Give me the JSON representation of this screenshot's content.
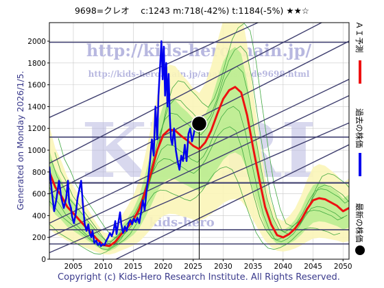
{
  "title": "9698=クレオ　 c:1243  m:718(-42%)  t:1184(-5%)  ★★☆",
  "footer": "Copyright (c) Kids-Hero Research Institute. All Rights Reserved.",
  "generated": "Generated on Monday 2026/1/5.",
  "watermark": {
    "url1": "http://kids-hero.main.jp/",
    "url2": "http://kids-hero.main.jp/analysis/code9698.html",
    "big": "KHRI",
    "bottom": "kids-hero"
  },
  "legend": {
    "ai": "ＡＩ予測",
    "past": "過去の株価",
    "latest": "最新の株価"
  },
  "colors": {
    "ai": "#ee1111",
    "past": "#0000ee",
    "latest": "#000000",
    "band_outer": "#fbf5b8",
    "band_inner": "#b6ec8e",
    "band_lines": "#3fa83f",
    "channel": "#404070",
    "grid": "#c8c8c8"
  },
  "chart_data": {
    "type": "line",
    "xlim": [
      2001.0,
      2051.0
    ],
    "ylim": [
      0,
      2170
    ],
    "x_ticks": [
      2005,
      2010,
      2015,
      2020,
      2025,
      2030,
      2035,
      2040,
      2045,
      2050
    ],
    "y_ticks": [
      0,
      200,
      400,
      600,
      800,
      1000,
      1200,
      1400,
      1600,
      1800,
      2000
    ],
    "current": {
      "x": 2026.0,
      "y": 1243
    },
    "horizontal_levels": [
      140,
      270,
      700,
      1120,
      1990
    ],
    "past_price": [
      [
        2001.0,
        850
      ],
      [
        2001.4,
        620
      ],
      [
        2001.8,
        440
      ],
      [
        2002.2,
        560
      ],
      [
        2002.6,
        720
      ],
      [
        2003.0,
        560
      ],
      [
        2003.4,
        470
      ],
      [
        2003.8,
        560
      ],
      [
        2004.1,
        720
      ],
      [
        2004.3,
        520
      ],
      [
        2004.6,
        470
      ],
      [
        2004.8,
        390
      ],
      [
        2005.1,
        330
      ],
      [
        2005.4,
        420
      ],
      [
        2005.7,
        560
      ],
      [
        2006.0,
        640
      ],
      [
        2006.3,
        720
      ],
      [
        2006.6,
        500
      ],
      [
        2006.9,
        320
      ],
      [
        2007.2,
        260
      ],
      [
        2007.5,
        320
      ],
      [
        2007.7,
        240
      ],
      [
        2008.0,
        200
      ],
      [
        2008.2,
        260
      ],
      [
        2008.5,
        150
      ],
      [
        2008.8,
        170
      ],
      [
        2009.1,
        130
      ],
      [
        2009.4,
        150
      ],
      [
        2009.6,
        120
      ],
      [
        2009.9,
        140
      ],
      [
        2010.2,
        130
      ],
      [
        2010.5,
        170
      ],
      [
        2010.8,
        200
      ],
      [
        2011.1,
        240
      ],
      [
        2011.4,
        210
      ],
      [
        2011.7,
        260
      ],
      [
        2012.0,
        350
      ],
      [
        2012.2,
        230
      ],
      [
        2012.5,
        330
      ],
      [
        2012.8,
        430
      ],
      [
        2013.0,
        320
      ],
      [
        2013.3,
        240
      ],
      [
        2013.6,
        300
      ],
      [
        2013.9,
        260
      ],
      [
        2014.2,
        330
      ],
      [
        2014.5,
        360
      ],
      [
        2014.8,
        320
      ],
      [
        2015.1,
        370
      ],
      [
        2015.4,
        340
      ],
      [
        2015.7,
        380
      ],
      [
        2016.0,
        330
      ],
      [
        2016.3,
        430
      ],
      [
        2016.6,
        540
      ],
      [
        2016.9,
        450
      ],
      [
        2017.2,
        620
      ],
      [
        2017.5,
        750
      ],
      [
        2017.8,
        900
      ],
      [
        2018.1,
        1100
      ],
      [
        2018.4,
        950
      ],
      [
        2018.7,
        1400
      ],
      [
        2019.0,
        1100
      ],
      [
        2019.2,
        1500
      ],
      [
        2019.5,
        1800
      ],
      [
        2019.7,
        2000
      ],
      [
        2019.9,
        1650
      ],
      [
        2020.1,
        1950
      ],
      [
        2020.3,
        1500
      ],
      [
        2020.5,
        1800
      ],
      [
        2020.7,
        1400
      ],
      [
        2020.9,
        1700
      ],
      [
        2021.1,
        1300
      ],
      [
        2021.3,
        1100
      ],
      [
        2021.5,
        1050
      ],
      [
        2021.8,
        1200
      ],
      [
        2022.1,
        1000
      ],
      [
        2022.4,
        900
      ],
      [
        2022.7,
        820
      ],
      [
        2023.0,
        950
      ],
      [
        2023.3,
        900
      ],
      [
        2023.6,
        1050
      ],
      [
        2023.9,
        900
      ],
      [
        2024.2,
        1150
      ],
      [
        2024.5,
        1200
      ],
      [
        2024.8,
        1080
      ],
      [
        2025.1,
        1150
      ],
      [
        2025.4,
        1250
      ],
      [
        2025.7,
        1180
      ],
      [
        2026.0,
        1243
      ]
    ],
    "ai_forecast": [
      [
        2001.0,
        800
      ],
      [
        2002.0,
        660
      ],
      [
        2003.0,
        580
      ],
      [
        2004.0,
        480
      ],
      [
        2005.0,
        420
      ],
      [
        2006.0,
        360
      ],
      [
        2007.0,
        300
      ],
      [
        2008.0,
        240
      ],
      [
        2009.0,
        180
      ],
      [
        2010.0,
        130
      ],
      [
        2011.0,
        120
      ],
      [
        2012.0,
        160
      ],
      [
        2013.0,
        230
      ],
      [
        2014.0,
        290
      ],
      [
        2015.0,
        360
      ],
      [
        2016.0,
        460
      ],
      [
        2017.0,
        620
      ],
      [
        2018.0,
        800
      ],
      [
        2019.0,
        1000
      ],
      [
        2020.0,
        1140
      ],
      [
        2021.0,
        1190
      ],
      [
        2022.0,
        1180
      ],
      [
        2023.0,
        1130
      ],
      [
        2024.0,
        1090
      ],
      [
        2025.0,
        1040
      ],
      [
        2026.0,
        1010
      ],
      [
        2027.0,
        1070
      ],
      [
        2028.0,
        1180
      ],
      [
        2029.0,
        1330
      ],
      [
        2030.0,
        1470
      ],
      [
        2031.0,
        1550
      ],
      [
        2032.0,
        1580
      ],
      [
        2033.0,
        1530
      ],
      [
        2034.0,
        1320
      ],
      [
        2035.0,
        1020
      ],
      [
        2036.0,
        740
      ],
      [
        2037.0,
        480
      ],
      [
        2038.0,
        320
      ],
      [
        2039.0,
        220
      ],
      [
        2040.0,
        200
      ],
      [
        2041.0,
        230
      ],
      [
        2042.0,
        280
      ],
      [
        2043.0,
        360
      ],
      [
        2044.0,
        460
      ],
      [
        2045.0,
        540
      ],
      [
        2046.0,
        560
      ],
      [
        2047.0,
        550
      ],
      [
        2048.0,
        520
      ],
      [
        2049.0,
        490
      ],
      [
        2050.0,
        440
      ],
      [
        2051.0,
        470
      ]
    ]
  }
}
